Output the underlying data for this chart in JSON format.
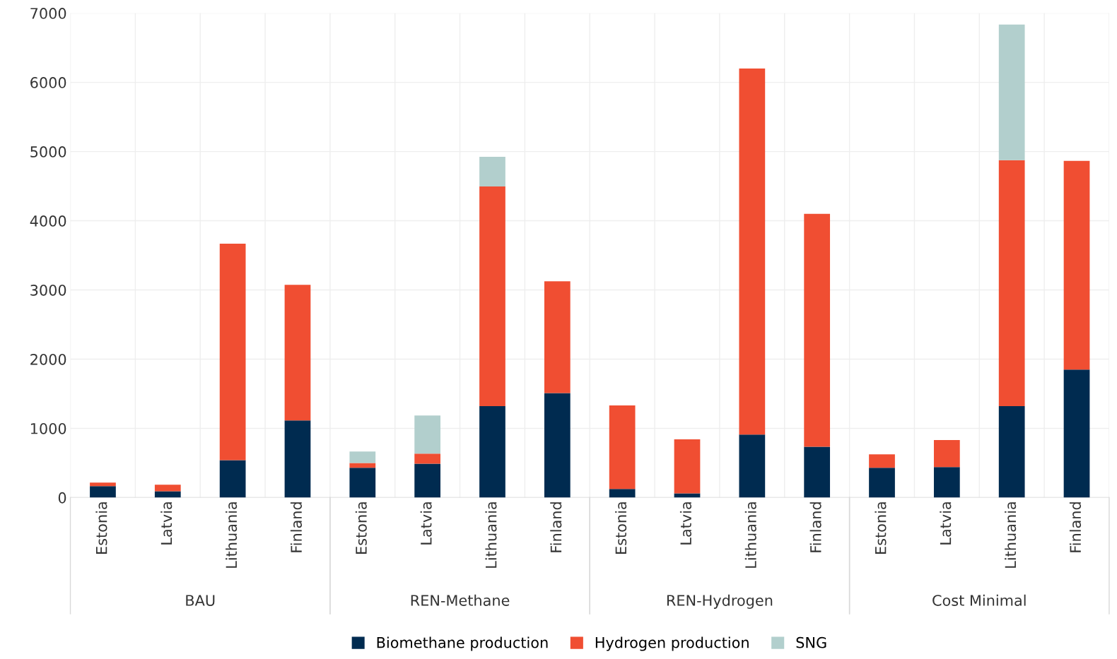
{
  "chart_data": {
    "type": "bar",
    "stacked": true,
    "categories": [
      "Estonia",
      "Latvia",
      "Lithuania",
      "Finland",
      "Estonia",
      "Latvia",
      "Lithuania",
      "Finland",
      "Estonia",
      "Latvia",
      "Lithuania",
      "Finland",
      "Estonia",
      "Latvia",
      "Lithuania",
      "Finland"
    ],
    "annotations": [
      "BAU",
      "REN-Methane",
      "REN-Hydrogen",
      "Cost Minimal"
    ],
    "series": [
      {
        "name": "Biomethane production",
        "color": "#002b50",
        "values": [
          165,
          90,
          540,
          1115,
          430,
          490,
          1320,
          1510,
          125,
          60,
          910,
          735,
          430,
          440,
          1320,
          1850
        ]
      },
      {
        "name": "Hydrogen production",
        "color": "#f04e32",
        "values": [
          50,
          95,
          3130,
          1960,
          70,
          145,
          3175,
          1615,
          1205,
          780,
          5290,
          3365,
          195,
          390,
          3555,
          3015
        ]
      },
      {
        "name": "SNG",
        "color": "#b2cfcd",
        "values": [
          0,
          0,
          0,
          0,
          165,
          550,
          430,
          0,
          0,
          0,
          0,
          0,
          0,
          0,
          1960,
          0
        ]
      }
    ],
    "ylim": [
      0,
      7000
    ],
    "yticks": [
      0,
      1000,
      2000,
      3000,
      4000,
      5000,
      6000,
      7000
    ],
    "grid": true,
    "legend": "bottom"
  }
}
